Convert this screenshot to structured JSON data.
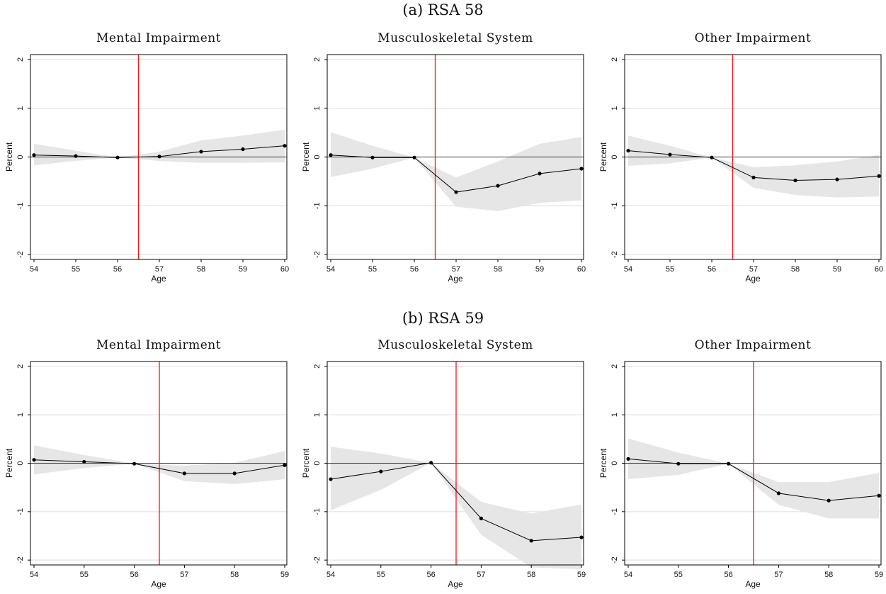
{
  "panels": [
    {
      "title": "(a) RSA 58"
    },
    {
      "title": "(b) RSA 59"
    }
  ],
  "chart_data": [
    {
      "type": "line",
      "panel": "(a) RSA 58",
      "title": "Mental Impairment",
      "xlabel": "Age",
      "ylabel": "Percent",
      "x": [
        54,
        55,
        56,
        57,
        58,
        59,
        60
      ],
      "series": [
        {
          "values": [
            0.04,
            0.02,
            -0.01,
            0.01,
            0.11,
            0.16,
            0.23
          ]
        }
      ],
      "ci_lower": [
        -0.17,
        -0.08,
        -0.01,
        -0.08,
        -0.12,
        -0.12,
        -0.11
      ],
      "ci_upper": [
        0.27,
        0.13,
        -0.01,
        0.11,
        0.34,
        0.44,
        0.56
      ],
      "vline": 56.5,
      "hline": 0,
      "xlim": [
        54,
        60
      ],
      "ylim": [
        -2,
        2
      ],
      "xticks": [
        54,
        55,
        56,
        57,
        58,
        59,
        60
      ],
      "yticks": [
        -2,
        -1,
        0,
        1,
        2
      ],
      "grid": true,
      "colors": {
        "line": "#000000",
        "band": "#e6e6e6",
        "vline": "#e8191f"
      }
    },
    {
      "type": "line",
      "panel": "(a) RSA 58",
      "title": "Musculoskeletal System",
      "xlabel": "Age",
      "ylabel": "Percent",
      "x": [
        54,
        55,
        56,
        57,
        58,
        59,
        60
      ],
      "series": [
        {
          "values": [
            0.04,
            -0.01,
            -0.01,
            -0.72,
            -0.59,
            -0.34,
            -0.24
          ]
        }
      ],
      "ci_lower": [
        -0.41,
        -0.24,
        -0.01,
        -1.02,
        -1.11,
        -0.94,
        -0.89
      ],
      "ci_upper": [
        0.51,
        0.23,
        -0.01,
        -0.42,
        -0.09,
        0.27,
        0.41
      ],
      "vline": 56.5,
      "hline": 0,
      "xlim": [
        54,
        60
      ],
      "ylim": [
        -2,
        2
      ],
      "xticks": [
        54,
        55,
        56,
        57,
        58,
        59,
        60
      ],
      "yticks": [
        -2,
        -1,
        0,
        1,
        2
      ],
      "grid": true,
      "colors": {
        "line": "#000000",
        "band": "#e6e6e6",
        "vline": "#e8191f"
      }
    },
    {
      "type": "line",
      "panel": "(a) RSA 58",
      "title": "Other Impairment",
      "xlabel": "Age",
      "ylabel": "Percent",
      "x": [
        54,
        55,
        56,
        57,
        58,
        59,
        60
      ],
      "series": [
        {
          "values": [
            0.13,
            0.05,
            -0.01,
            -0.42,
            -0.48,
            -0.46,
            -0.39
          ]
        }
      ],
      "ci_lower": [
        -0.18,
        -0.13,
        -0.01,
        -0.63,
        -0.78,
        -0.83,
        -0.81
      ],
      "ci_upper": [
        0.44,
        0.23,
        -0.01,
        -0.21,
        -0.17,
        -0.09,
        0.04
      ],
      "vline": 56.5,
      "hline": 0,
      "xlim": [
        54,
        60
      ],
      "ylim": [
        -2,
        2
      ],
      "xticks": [
        54,
        55,
        56,
        57,
        58,
        59,
        60
      ],
      "yticks": [
        -2,
        -1,
        0,
        1,
        2
      ],
      "grid": true,
      "colors": {
        "line": "#000000",
        "band": "#e6e6e6",
        "vline": "#e8191f"
      }
    },
    {
      "type": "line",
      "panel": "(b) RSA 59",
      "title": "Mental Impairment",
      "xlabel": "Age",
      "ylabel": "Percent",
      "x": [
        54,
        55,
        56,
        57,
        58,
        59
      ],
      "series": [
        {
          "values": [
            0.07,
            0.03,
            -0.01,
            -0.21,
            -0.21,
            -0.04
          ]
        }
      ],
      "ci_lower": [
        -0.23,
        -0.1,
        -0.01,
        -0.37,
        -0.43,
        -0.33
      ],
      "ci_upper": [
        0.37,
        0.17,
        -0.01,
        -0.05,
        0.01,
        0.25
      ],
      "vline": 56.5,
      "hline": 0,
      "xlim": [
        54,
        59
      ],
      "ylim": [
        -2,
        2
      ],
      "xticks": [
        54,
        55,
        56,
        57,
        58,
        59
      ],
      "yticks": [
        -2,
        -1,
        0,
        1,
        2
      ],
      "grid": true,
      "colors": {
        "line": "#000000",
        "band": "#e6e6e6",
        "vline": "#e8191f"
      }
    },
    {
      "type": "line",
      "panel": "(b) RSA 59",
      "title": "Musculoskeletal System",
      "xlabel": "Age",
      "ylabel": "Percent",
      "x": [
        54,
        55,
        56,
        57,
        58,
        59
      ],
      "series": [
        {
          "values": [
            -0.33,
            -0.17,
            0.01,
            -1.14,
            -1.6,
            -1.53
          ]
        }
      ],
      "ci_lower": [
        -0.97,
        -0.55,
        0.01,
        -1.48,
        -2.15,
        -2.19
      ],
      "ci_upper": [
        0.34,
        0.2,
        0.01,
        -0.8,
        -1.04,
        -0.85
      ],
      "vline": 56.5,
      "hline": 0,
      "xlim": [
        54,
        59
      ],
      "ylim": [
        -2,
        2
      ],
      "xticks": [
        54,
        55,
        56,
        57,
        58,
        59
      ],
      "yticks": [
        -2,
        -1,
        0,
        1,
        2
      ],
      "grid": true,
      "colors": {
        "line": "#000000",
        "band": "#e6e6e6",
        "vline": "#e8191f"
      }
    },
    {
      "type": "line",
      "panel": "(b) RSA 59",
      "title": "Other Impairment",
      "xlabel": "Age",
      "ylabel": "Percent",
      "x": [
        54,
        55,
        56,
        57,
        58,
        59
      ],
      "series": [
        {
          "values": [
            0.09,
            -0.01,
            -0.01,
            -0.62,
            -0.77,
            -0.67
          ]
        }
      ],
      "ci_lower": [
        -0.33,
        -0.24,
        -0.01,
        -0.86,
        -1.14,
        -1.14
      ],
      "ci_upper": [
        0.51,
        0.22,
        -0.01,
        -0.39,
        -0.39,
        -0.2
      ],
      "vline": 56.5,
      "hline": 0,
      "xlim": [
        54,
        59
      ],
      "ylim": [
        -2,
        2
      ],
      "xticks": [
        54,
        55,
        56,
        57,
        58,
        59
      ],
      "yticks": [
        -2,
        -1,
        0,
        1,
        2
      ],
      "grid": true,
      "colors": {
        "line": "#000000",
        "band": "#e6e6e6",
        "vline": "#e8191f"
      }
    }
  ]
}
